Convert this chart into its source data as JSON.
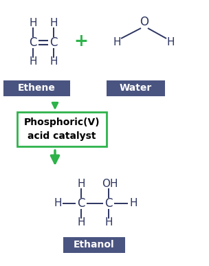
{
  "bg_color": "#ffffff",
  "atom_color": "#2d3561",
  "bond_color": "#2d3561",
  "plus_color": "#2db34a",
  "arrow_color": "#2db34a",
  "box_color": "#2db34a",
  "label_bg_color": "#4a5480",
  "label_text_color": "#ffffff",
  "label_ethene": "Ethene",
  "label_water": "Water",
  "label_ethanol": "Ethanol",
  "catalyst_text": "Phosphoric(V)\nacid catalyst",
  "font_size_atoms": 11,
  "font_size_labels": 10,
  "font_size_catalyst": 10,
  "fig_w": 3.04,
  "fig_h": 3.87,
  "dpi": 100
}
